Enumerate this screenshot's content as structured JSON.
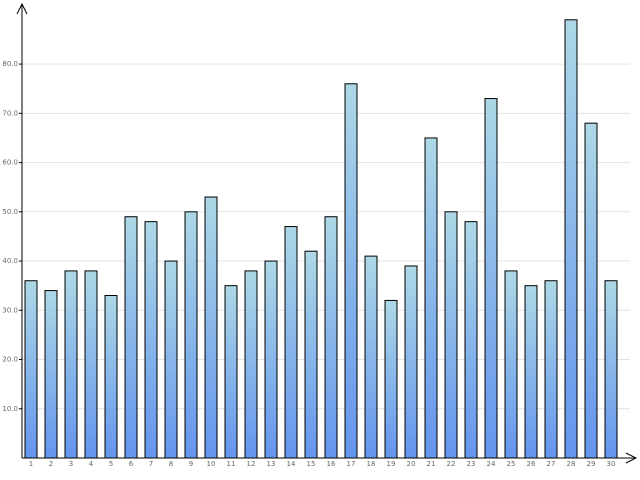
{
  "chart_data": {
    "type": "bar",
    "categories": [
      "1",
      "2",
      "3",
      "4",
      "5",
      "6",
      "7",
      "8",
      "9",
      "10",
      "11",
      "12",
      "13",
      "14",
      "15",
      "16",
      "17",
      "18",
      "19",
      "20",
      "21",
      "22",
      "23",
      "24",
      "25",
      "26",
      "27",
      "28",
      "29",
      "30"
    ],
    "values": [
      36,
      34,
      38,
      38,
      33,
      49,
      48,
      40,
      50,
      53,
      35,
      38,
      40,
      47,
      42,
      49,
      76,
      41,
      32,
      39,
      65,
      50,
      48,
      73,
      38,
      35,
      36,
      89,
      68,
      36
    ],
    "gradient": [
      "#add8e6",
      "#6495ed"
    ],
    "ylim": [
      0,
      92
    ],
    "yticks": [
      {
        "value": 10,
        "label": "10.0"
      },
      {
        "value": 20,
        "label": "20.0"
      },
      {
        "value": 30,
        "label": "30.0"
      },
      {
        "value": 40,
        "label": "40.0"
      },
      {
        "value": 50,
        "label": "50.0"
      },
      {
        "value": 60,
        "label": "60.0"
      },
      {
        "value": 70,
        "label": "70.0"
      },
      {
        "value": 80,
        "label": "80.0"
      }
    ],
    "grid": true
  }
}
